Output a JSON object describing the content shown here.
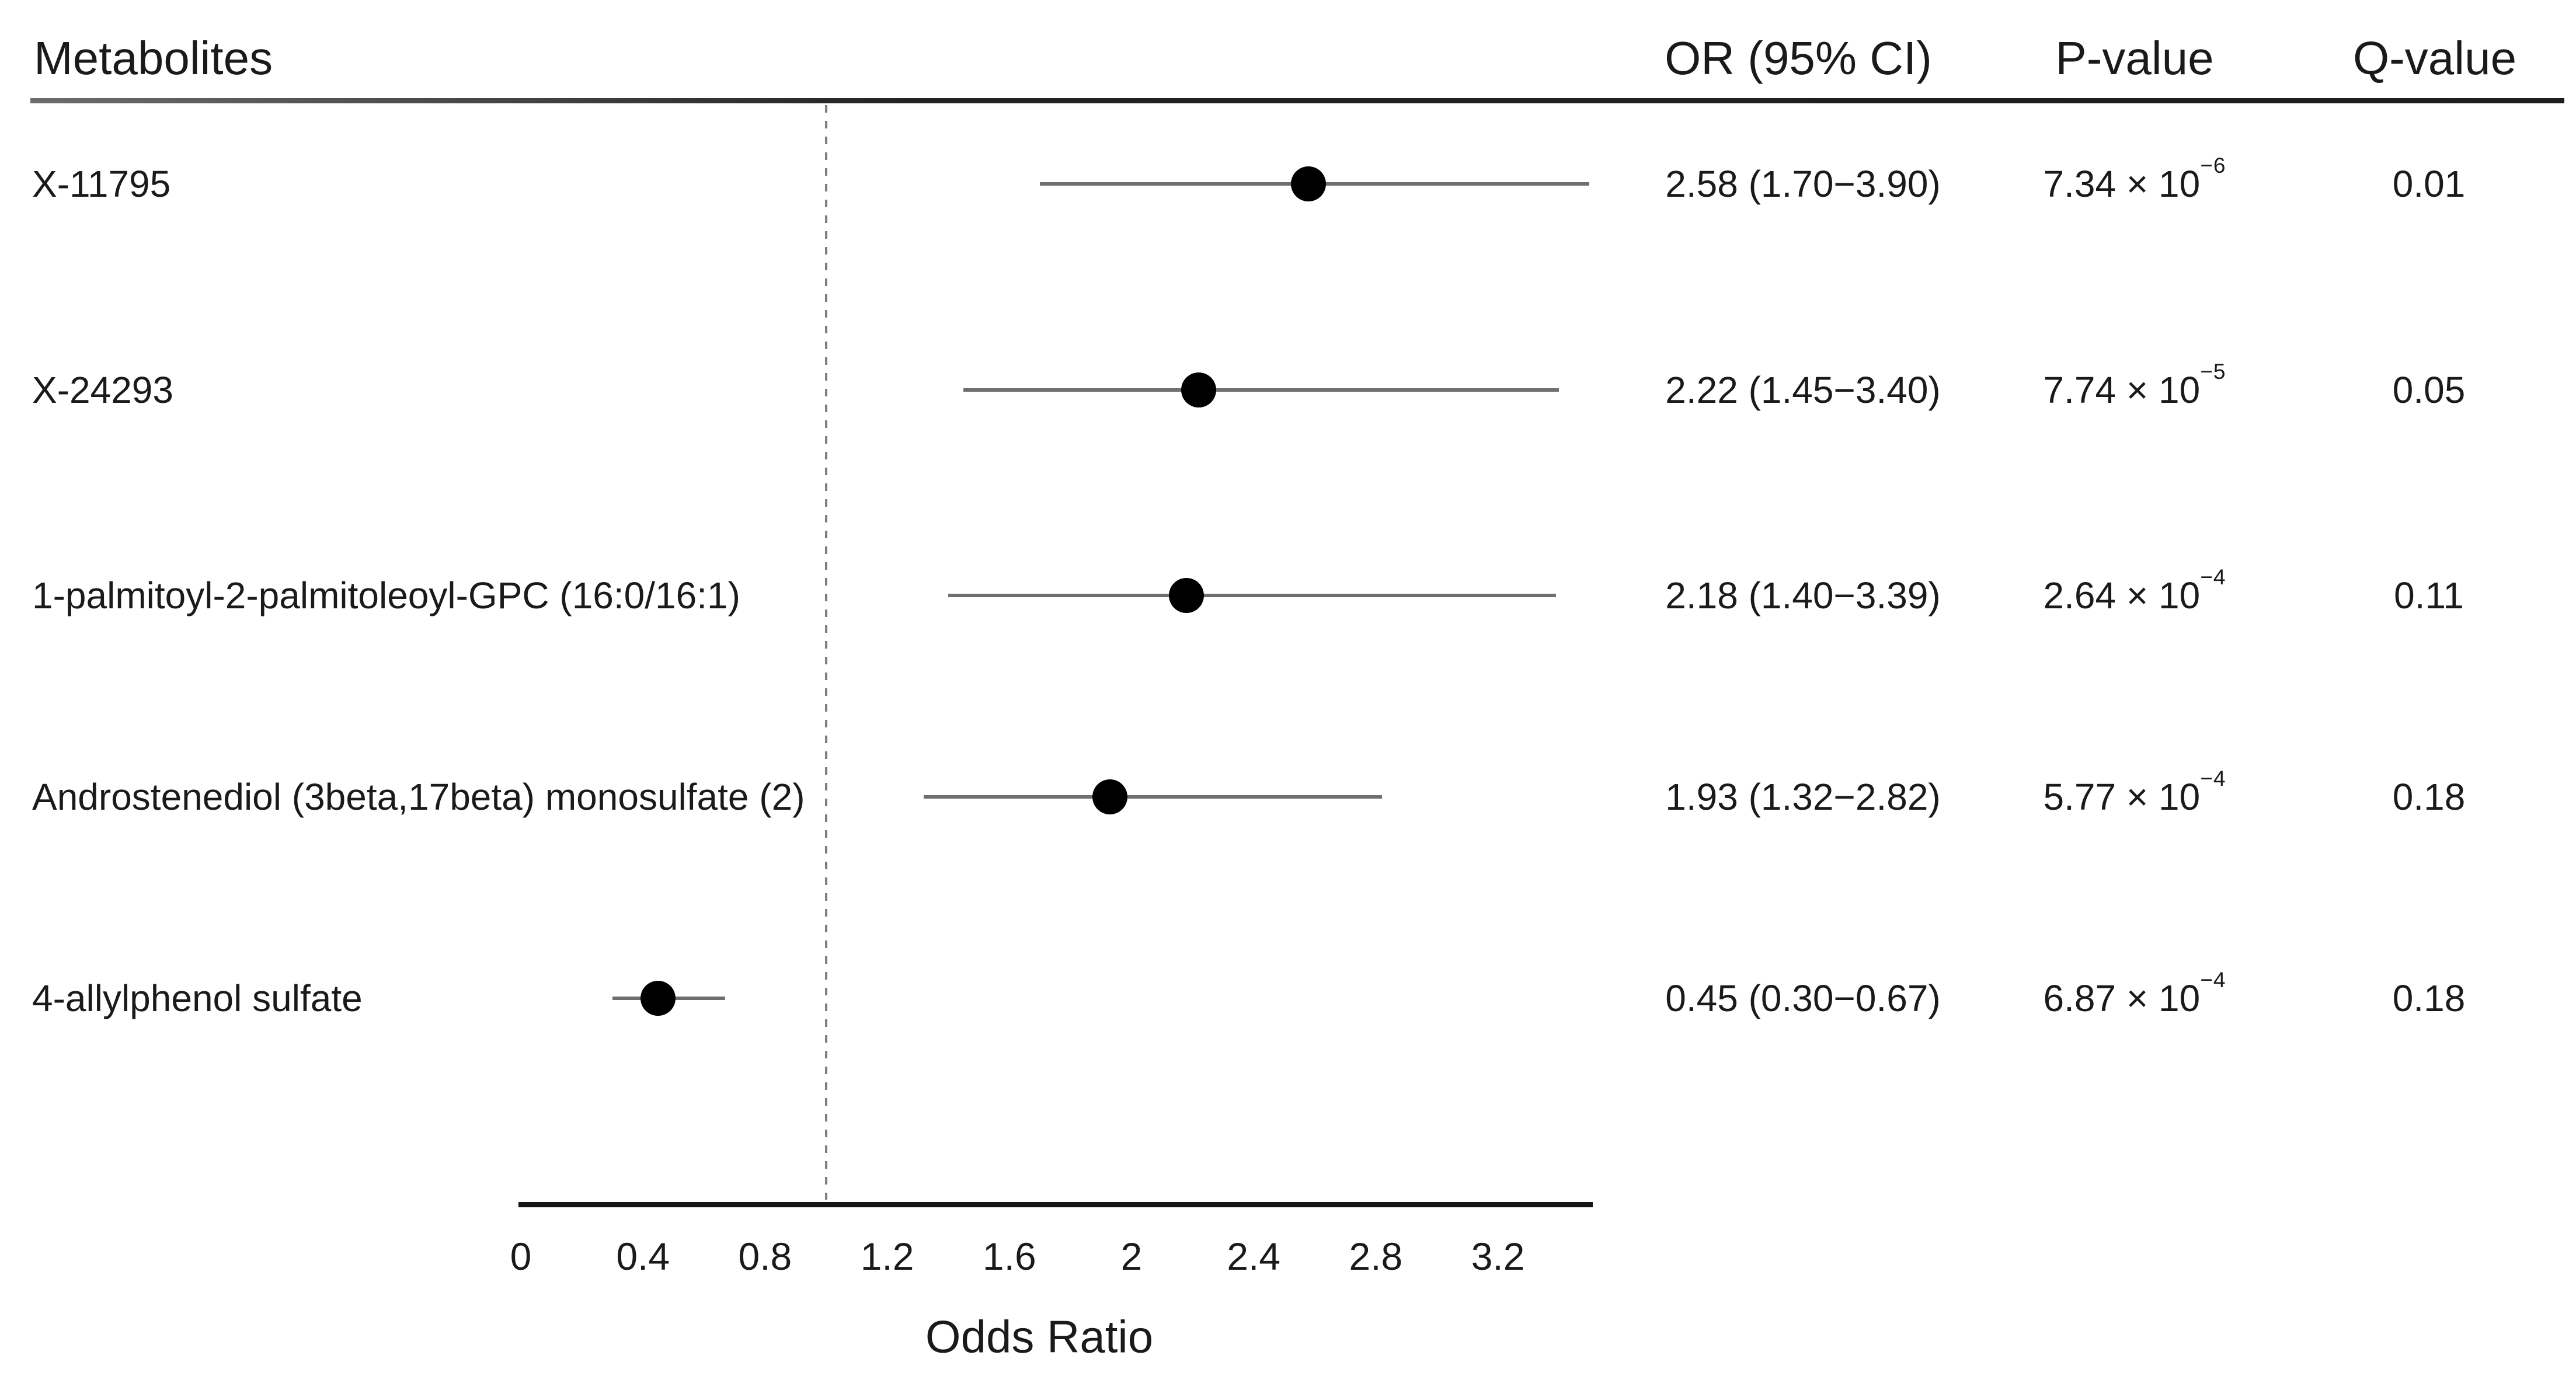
{
  "table": {
    "headers": {
      "metabolites": "Metabolites",
      "or": "OR (95% CI)",
      "p": "P-value",
      "q": "Q-value"
    },
    "rows": [
      {
        "label": "X-11795",
        "or_ci": "2.58 (1.70−3.90)",
        "p_base": "7.34 × 10",
        "p_exp": "−6",
        "q": "0.01"
      },
      {
        "label": "X-24293",
        "or_ci": "2.22 (1.45−3.40)",
        "p_base": "7.74 × 10",
        "p_exp": "−5",
        "q": "0.05"
      },
      {
        "label": "1-palmitoyl-2-palmitoleoyl-GPC (16:0/16:1)",
        "or_ci": "2.18 (1.40−3.39)",
        "p_base": "2.64 × 10",
        "p_exp": "−4",
        "q": "0.11"
      },
      {
        "label": "Androstenediol (3beta,17beta) monosulfate (2)",
        "or_ci": "1.93 (1.32−2.82)",
        "p_base": "5.77 × 10",
        "p_exp": "−4",
        "q": "0.18"
      },
      {
        "label": "4-allylphenol sulfate",
        "or_ci": "0.45 (0.30−0.67)",
        "p_base": "6.87 × 10",
        "p_exp": "−4",
        "q": "0.18"
      }
    ]
  },
  "chart_data": {
    "type": "scatter",
    "subtype": "forest-plot",
    "xlabel": "Odds Ratio",
    "x_ticks": [
      0,
      0.4,
      0.8,
      1.2,
      1.6,
      2,
      2.4,
      2.8,
      3.2
    ],
    "x_tick_labels": [
      "0",
      "0.4",
      "0.8",
      "1.2",
      "1.6",
      "2",
      "2.4",
      "2.8",
      "3.2"
    ],
    "xlim": [
      0,
      3.5
    ],
    "ref_line": 1.0,
    "grid": false,
    "marker_color": "#000000",
    "ci_color": "#6f6f6f",
    "series": [
      {
        "name": "X-11795",
        "or": 2.58,
        "ci_low": 1.7,
        "ci_high": 3.9
      },
      {
        "name": "X-24293",
        "or": 2.22,
        "ci_low": 1.45,
        "ci_high": 3.4
      },
      {
        "name": "1-palmitoyl-2-palmitoleoyl-GPC (16:0/16:1)",
        "or": 2.18,
        "ci_low": 1.4,
        "ci_high": 3.39
      },
      {
        "name": "Androstenediol (3beta,17beta) monosulfate (2)",
        "or": 1.93,
        "ci_low": 1.32,
        "ci_high": 2.82
      },
      {
        "name": "4-allylphenol sulfate",
        "or": 0.45,
        "ci_low": 0.3,
        "ci_high": 0.67
      }
    ]
  }
}
